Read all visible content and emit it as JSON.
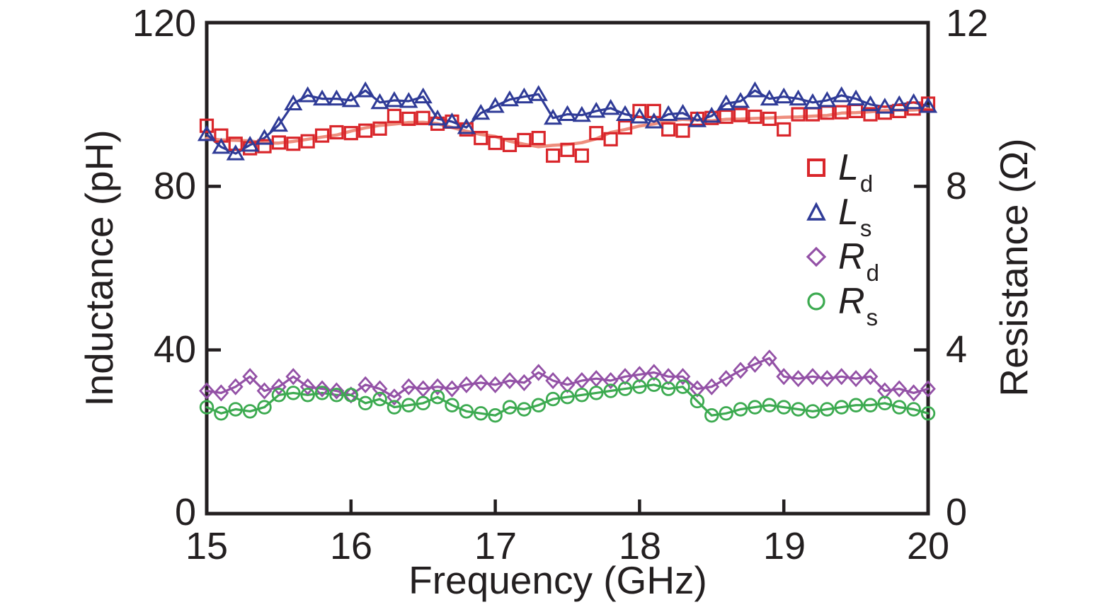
{
  "figure": {
    "background": "#ffffff",
    "frame_color": "#231f20",
    "text_color": "#231f20"
  },
  "chart_data": {
    "type": "scatter",
    "title": "",
    "x_axis": {
      "label": "Frequency (GHz)",
      "range": [
        15,
        20
      ],
      "tick_values": [
        15,
        16,
        17,
        18,
        19,
        20
      ],
      "tick_labels": [
        "15",
        "16",
        "17",
        "18",
        "19",
        "20"
      ]
    },
    "left_y_axis": {
      "label": "Inductance (pH)",
      "range": [
        0,
        120
      ],
      "tick_values": [
        0,
        40,
        80,
        120
      ],
      "tick_labels": [
        "0",
        "40",
        "80",
        "120"
      ]
    },
    "right_y_axis": {
      "label": "Resistance (Ω)",
      "range": [
        0,
        12
      ],
      "tick_values": [
        0,
        4,
        8,
        12
      ],
      "tick_labels": [
        "0",
        "4",
        "8",
        "12"
      ]
    },
    "grid": false,
    "legend_position": "inside-upper-right",
    "x_values": [
      15.0,
      15.1,
      15.2,
      15.3,
      15.4,
      15.5,
      15.6,
      15.7,
      15.8,
      15.9,
      16.0,
      16.1,
      16.2,
      16.3,
      16.4,
      16.5,
      16.6,
      16.7,
      16.8,
      16.9,
      17.0,
      17.1,
      17.2,
      17.3,
      17.4,
      17.5,
      17.6,
      17.7,
      17.8,
      17.9,
      18.0,
      18.1,
      18.2,
      18.3,
      18.4,
      18.5,
      18.6,
      18.7,
      18.8,
      18.9,
      19.0,
      19.1,
      19.2,
      19.3,
      19.4,
      19.5,
      19.6,
      19.7,
      19.8,
      19.9,
      20.0
    ],
    "series": [
      {
        "key": "Ld",
        "label_letter": "L",
        "label_sub": "d",
        "axis": "left",
        "unit": "pH",
        "marker": "square",
        "color": "#d9262b",
        "trend": "smooth_fit",
        "trend_color": "#ee8e7e",
        "values": [
          94.8,
          92.4,
          90.4,
          89.3,
          89.8,
          90.7,
          90.4,
          91.0,
          92.4,
          93.2,
          93.0,
          93.6,
          94.1,
          97.2,
          96.5,
          96.7,
          95.3,
          95.8,
          93.9,
          91.8,
          90.6,
          90.1,
          91.3,
          91.8,
          87.5,
          88.9,
          87.5,
          93.0,
          91.5,
          94.4,
          98.4,
          98.4,
          93.9,
          93.6,
          96.5,
          96.7,
          97.0,
          97.4,
          97.0,
          96.5,
          93.9,
          97.6,
          97.6,
          98.0,
          98.1,
          98.4,
          97.6,
          98.0,
          98.4,
          99.0,
          100.2
        ]
      },
      {
        "key": "Ls",
        "label_letter": "L",
        "label_sub": "s",
        "axis": "left",
        "unit": "pH",
        "marker": "triangle",
        "color": "#2f3b97",
        "trend": "connect",
        "trend_color": "#2f3b97",
        "values": [
          92.7,
          89.6,
          88.0,
          90.1,
          91.8,
          95.0,
          100.2,
          102.2,
          101.4,
          101.4,
          101.0,
          103.4,
          100.5,
          101.0,
          100.8,
          101.9,
          96.5,
          95.8,
          94.4,
          97.9,
          99.6,
          101.2,
          101.9,
          102.5,
          96.7,
          97.6,
          97.4,
          98.4,
          99.1,
          97.6,
          97.0,
          95.8,
          97.6,
          97.9,
          96.1,
          97.2,
          100.2,
          100.8,
          103.4,
          101.4,
          101.9,
          101.4,
          100.5,
          101.0,
          102.2,
          101.4,
          100.0,
          99.4,
          100.0,
          100.5,
          99.6
        ]
      },
      {
        "key": "Rd",
        "label_letter": "R",
        "label_sub": "d",
        "axis": "right",
        "unit": "Ω",
        "marker": "diamond",
        "color": "#9351a6",
        "trend": "connect",
        "trend_color": "#9351a6",
        "values": [
          3.0,
          2.95,
          3.1,
          3.35,
          3.0,
          3.1,
          3.35,
          3.1,
          3.05,
          3.0,
          2.9,
          3.15,
          3.05,
          2.85,
          3.1,
          3.05,
          3.1,
          3.05,
          3.15,
          3.2,
          3.15,
          3.25,
          3.2,
          3.45,
          3.25,
          3.15,
          3.25,
          3.3,
          3.25,
          3.35,
          3.4,
          3.45,
          3.35,
          3.35,
          3.05,
          3.1,
          3.3,
          3.5,
          3.65,
          3.8,
          3.35,
          3.3,
          3.35,
          3.3,
          3.35,
          3.3,
          3.35,
          3.0,
          3.05,
          2.95,
          3.05
        ]
      },
      {
        "key": "Rs",
        "label_letter": "R",
        "label_sub": "s",
        "axis": "right",
        "unit": "Ω",
        "marker": "circle",
        "color": "#3caa50",
        "trend": "connect",
        "trend_color": "#3caa50",
        "values": [
          2.6,
          2.45,
          2.55,
          2.5,
          2.6,
          2.9,
          2.95,
          2.9,
          2.95,
          2.9,
          2.9,
          2.7,
          2.8,
          2.6,
          2.65,
          2.7,
          2.85,
          2.65,
          2.5,
          2.45,
          2.4,
          2.6,
          2.55,
          2.65,
          2.8,
          2.85,
          2.9,
          2.95,
          3.0,
          3.05,
          3.1,
          3.15,
          3.05,
          3.1,
          2.75,
          2.4,
          2.45,
          2.55,
          2.6,
          2.65,
          2.6,
          2.55,
          2.5,
          2.55,
          2.6,
          2.65,
          2.65,
          2.7,
          2.6,
          2.55,
          2.45
        ]
      }
    ]
  }
}
